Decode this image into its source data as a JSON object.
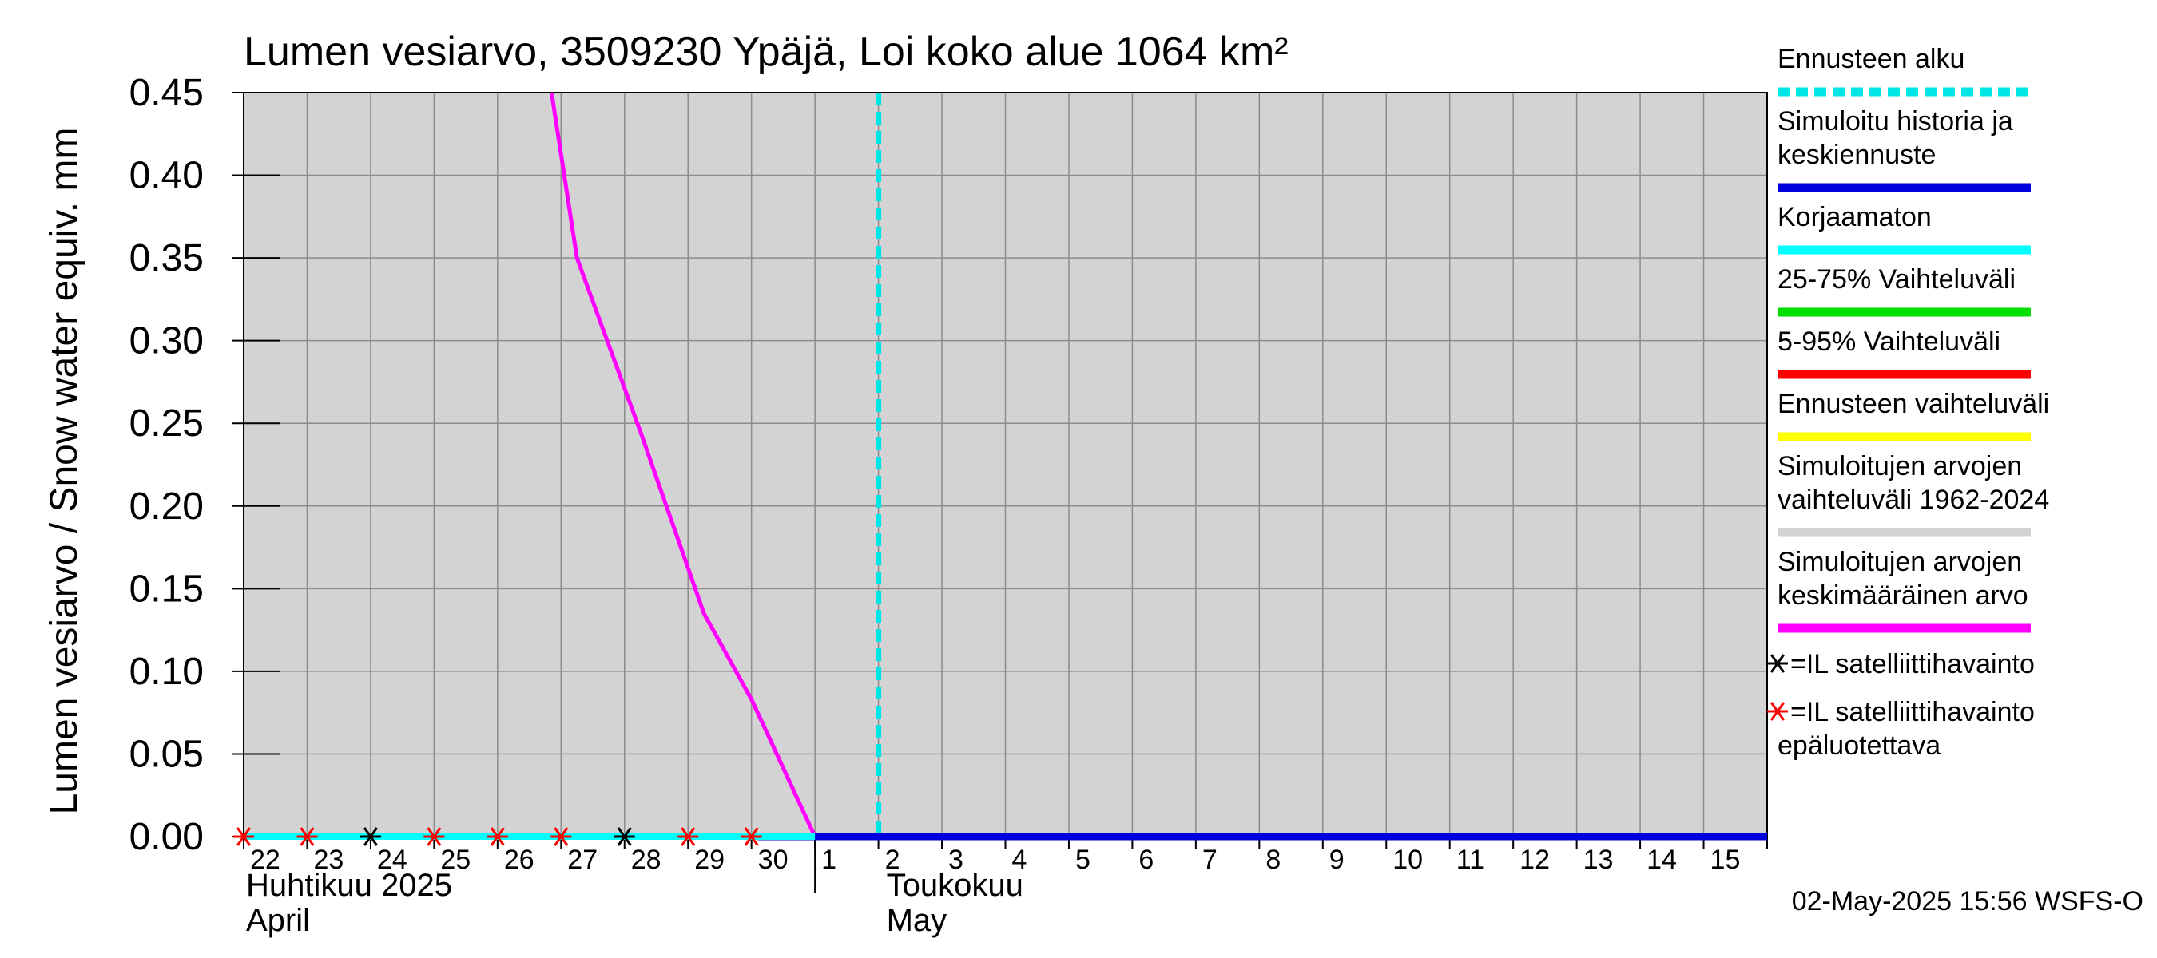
{
  "chart_data": {
    "type": "line",
    "title": "Lumen vesiarvo, 3509230 Ypäjä, Loi koko alue 1064 km²",
    "ylabel": "Lumen vesiarvo / Snow water equiv.    mm",
    "ylim": [
      0,
      0.45
    ],
    "yticks": [
      "0.00",
      "0.05",
      "0.10",
      "0.15",
      "0.20",
      "0.25",
      "0.30",
      "0.35",
      "0.40",
      "0.45"
    ],
    "x_day_range": [
      0,
      24
    ],
    "x_tick_labels": [
      "22",
      "23",
      "24",
      "25",
      "26",
      "27",
      "28",
      "29",
      "30",
      "1",
      "2",
      "3",
      "4",
      "5",
      "6",
      "7",
      "8",
      "9",
      "10",
      "11",
      "12",
      "13",
      "14",
      "15"
    ],
    "month_labels": [
      {
        "fi": "Huhtikuu  2025",
        "en": "April",
        "day_index": 0
      },
      {
        "fi": "Toukokuu",
        "en": "May",
        "day_index": 10
      }
    ],
    "month_boundary_day": 9,
    "forecast_start_day": 10.0,
    "series": [
      {
        "name": "Simuloitujen arvojen keskimääräinen arvo",
        "color": "#ff00ff",
        "x": [
          4.85,
          5.25,
          6.25,
          7.25,
          8.0,
          9.0,
          24
        ],
        "y": [
          0.45,
          0.35,
          0.245,
          0.135,
          0.083,
          0.0,
          0.0
        ]
      },
      {
        "name": "Simuloitu historia ja keskiennuste",
        "color": "#0000dd",
        "x": [
          8.1,
          9.0,
          24
        ],
        "y": [
          0.0,
          0.0,
          0.0
        ]
      },
      {
        "name": "Korjaamaton",
        "color": "#00ffff",
        "x": [
          0,
          9.0
        ],
        "y": [
          0.0,
          0.0
        ]
      }
    ],
    "satellite_black": {
      "x": [
        2,
        6
      ],
      "y": [
        0.0,
        0.0
      ]
    },
    "satellite_red": {
      "x": [
        0,
        1,
        3,
        4,
        5,
        7,
        8
      ],
      "y": [
        0.0,
        0.0,
        0.0,
        0.0,
        0.0,
        0.0,
        0.0
      ]
    },
    "legend": [
      {
        "label": [
          "Ennusteen alku"
        ],
        "color": "#00e5e5",
        "style": "dashed"
      },
      {
        "label": [
          "Simuloitu historia ja",
          "keskiennuste"
        ],
        "color": "#0000dd",
        "style": "solid"
      },
      {
        "label": [
          "Korjaamaton"
        ],
        "color": "#00ffff",
        "style": "solid"
      },
      {
        "label": [
          "25-75% Vaihteluväli"
        ],
        "color": "#00dd00",
        "style": "solid"
      },
      {
        "label": [
          "5-95% Vaihteluväli"
        ],
        "color": "#ff0000",
        "style": "solid"
      },
      {
        "label": [
          "Ennusteen vaihteluväli"
        ],
        "color": "#ffff00",
        "style": "solid"
      },
      {
        "label": [
          "Simuloitujen arvojen",
          "vaihteluväli 1962-2024"
        ],
        "color": "#d3d3d3",
        "style": "solid"
      },
      {
        "label": [
          "Simuloitujen arvojen",
          "keskimääräinen arvo"
        ],
        "color": "#ff00ff",
        "style": "solid"
      }
    ],
    "marker_legend": [
      {
        "label": [
          "=IL satelliittihavainto"
        ],
        "color": "#000000"
      },
      {
        "label": [
          "=IL satelliittihavainto",
          "epäluotettava"
        ],
        "color": "#ff0000"
      }
    ],
    "footer": "02-May-2025 15:56 WSFS-O"
  }
}
